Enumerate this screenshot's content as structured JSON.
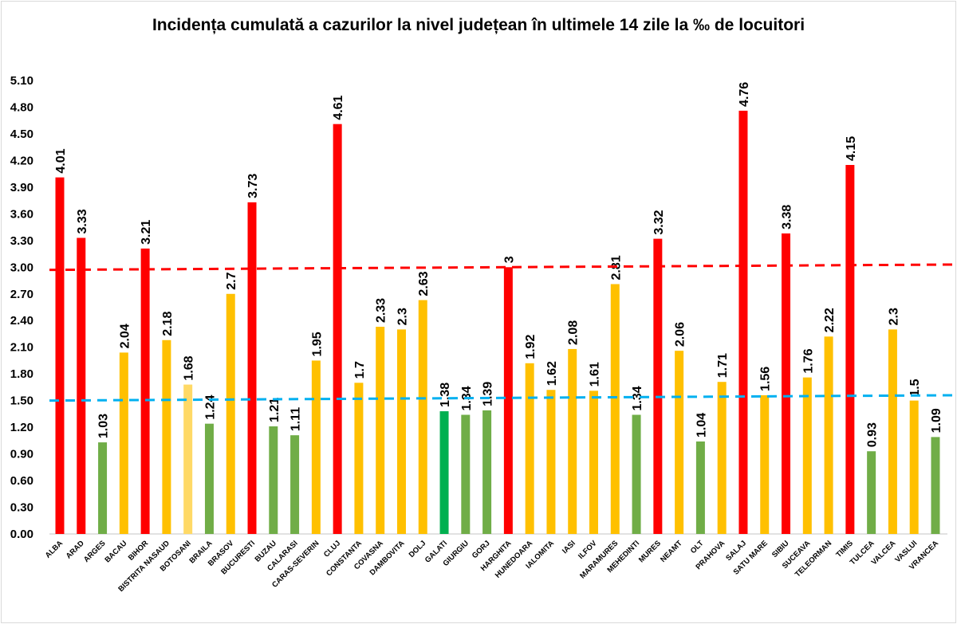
{
  "chart_data": {
    "type": "bar",
    "title": "Incidența cumulată a cazurilor la nivel județean în ultimele 14 zile la ‰ de locuitori",
    "xlabel": "",
    "ylabel": "",
    "ylim": [
      0,
      5.1
    ],
    "yticks": [
      "0.00",
      "0.30",
      "0.60",
      "0.90",
      "1.20",
      "1.50",
      "1.80",
      "2.10",
      "2.40",
      "2.70",
      "3.00",
      "3.30",
      "3.60",
      "3.90",
      "4.20",
      "4.50",
      "4.80",
      "5.10"
    ],
    "grid": false,
    "legend": "none",
    "categories": [
      "ALBA",
      "ARAD",
      "ARGES",
      "BACAU",
      "BIHOR",
      "BISTRITA NASAUD",
      "BOTOSANI",
      "BRAILA",
      "BRASOV",
      "BUCURESTI",
      "BUZAU",
      "CALARASI",
      "CARAS-SEVERIN",
      "CLUJ",
      "CONSTANTA",
      "COVASNA",
      "DAMBOVITA",
      "DOLJ",
      "GALATI",
      "GIURGIU",
      "GORJ",
      "HARGHITA",
      "HUNEDOARA",
      "IALOMITA",
      "IASI",
      "ILFOV",
      "MARAMURES",
      "MEHEDINTI",
      "MURES",
      "NEAMT",
      "OLT",
      "PRAHOVA",
      "SALAJ",
      "SATU MARE",
      "SIBIU",
      "SUCEAVA",
      "TELEORMAN",
      "TIMIS",
      "TULCEA",
      "VALCEA",
      "VASLUI",
      "VRANCEA"
    ],
    "values": [
      4.01,
      3.33,
      1.03,
      2.04,
      3.21,
      2.18,
      1.68,
      1.24,
      2.7,
      3.73,
      1.21,
      1.11,
      1.95,
      4.61,
      1.7,
      2.33,
      2.3,
      2.63,
      1.38,
      1.34,
      1.39,
      3,
      1.92,
      1.62,
      2.08,
      1.61,
      2.81,
      1.34,
      3.32,
      2.06,
      1.04,
      1.71,
      4.76,
      1.56,
      3.38,
      1.76,
      2.22,
      4.15,
      0.93,
      2.3,
      1.5,
      1.09
    ],
    "data_labels": [
      "4.01",
      "3.33",
      "1.03",
      "2.04",
      "3.21",
      "2.18",
      "1.68",
      "1.24",
      "2.7",
      "3.73",
      "1.21",
      "1.11",
      "1.95",
      "4.61",
      "1.7",
      "2.33",
      "2.3",
      "2.63",
      "1.38",
      "1.34",
      "1.39",
      "3",
      "1.92",
      "1.62",
      "2.08",
      "1.61",
      "2.81",
      "1.34",
      "3.32",
      "2.06",
      "1.04",
      "1.71",
      "4.76",
      "1.56",
      "3.38",
      "1.76",
      "2.22",
      "4.15",
      "0.93",
      "2.3",
      "1.5",
      "1.09"
    ],
    "colors": {
      "high": "#ff0000",
      "medium": "#ffc000",
      "low": "#70ad47",
      "botosani": "#ffd966",
      "galati": "#00b050"
    },
    "reference_lines": [
      {
        "style": "dashed",
        "color": "#ff0000",
        "from": 2.97,
        "to": 3.03
      },
      {
        "style": "dashed",
        "color": "#00b0f0",
        "from": 1.5,
        "to": 1.56
      }
    ]
  }
}
